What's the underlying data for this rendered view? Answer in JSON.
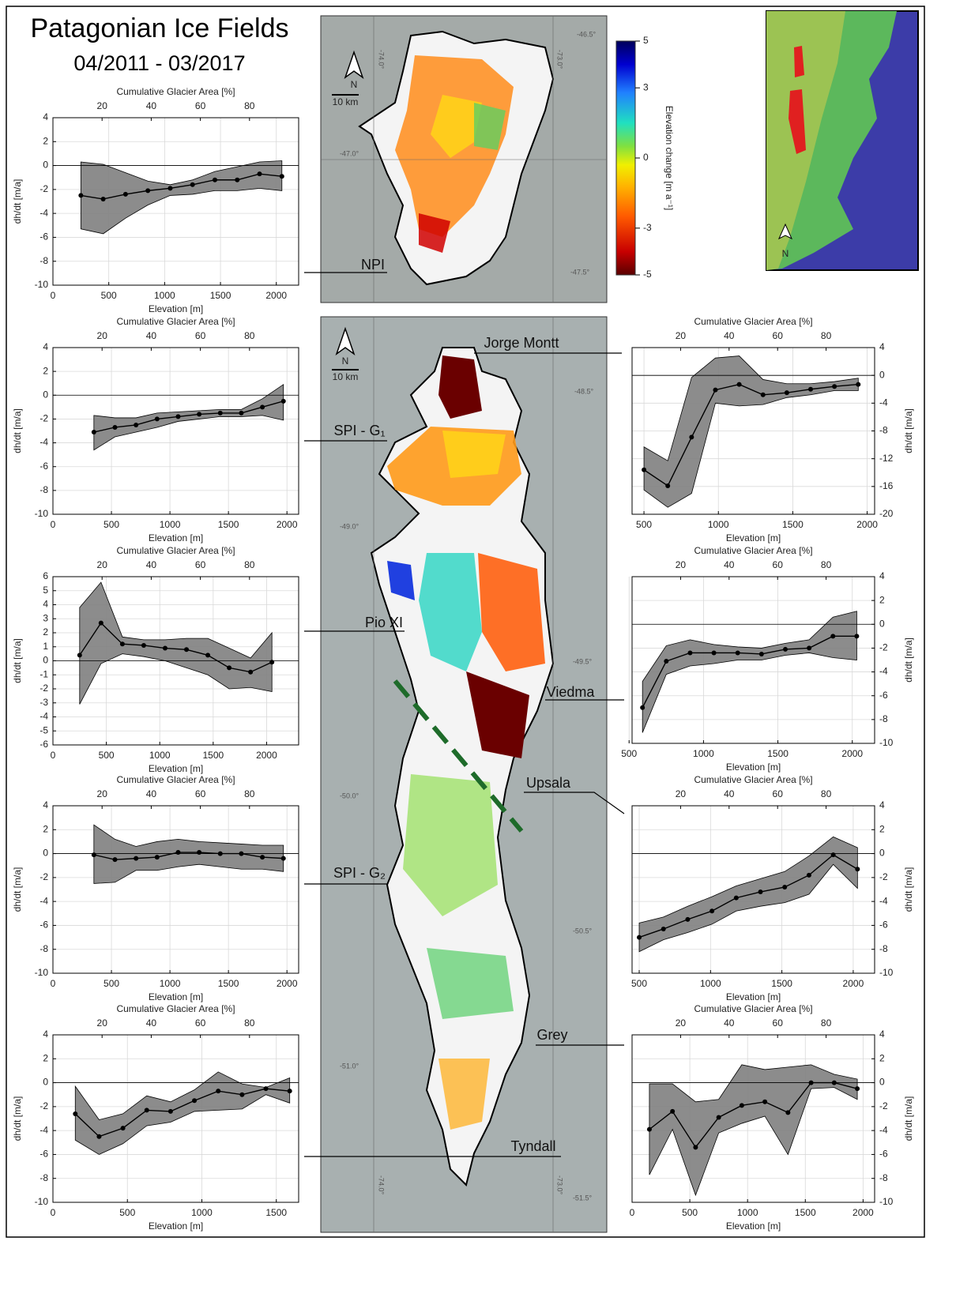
{
  "figure": {
    "title": "Patagonian Ice Fields",
    "subtitle": "04/2011 - 03/2017"
  },
  "colorbar": {
    "label": "Elevation change [m a⁻¹]",
    "lim": [
      -5,
      5
    ],
    "ticks": [
      5,
      3,
      0,
      -3,
      -5
    ]
  },
  "maps": [
    {
      "coordinates": [
        "-74.0°",
        "-73.0°",
        "-46.5°",
        "-47.0°",
        "-47.5°"
      ],
      "scale": "10 km",
      "north": "N"
    },
    {
      "coordinates": [
        "-48.5°",
        "-49.0°",
        "-49.5°",
        "-50.0°",
        "-50.5°",
        "-51.0°",
        "-51.5°",
        "-74.0°",
        "-73.0°"
      ],
      "scale": "10 km",
      "north": "N"
    },
    {
      "north": "N"
    }
  ],
  "chart_data": [
    {
      "type": "line",
      "label": "NPI",
      "x2label": "Cumulative Glacier Area [%]",
      "xlabel": "Elevation [m]",
      "ylabel": "dh/dt [m/a]",
      "yaxis": "left",
      "grid": true,
      "zero_line": true,
      "x": [
        250,
        450,
        650,
        850,
        1050,
        1250,
        1450,
        1650,
        1850,
        2050
      ],
      "series": [
        {
          "color": "#000000",
          "values": [
            -2.5,
            -2.8,
            -2.4,
            -2.1,
            -1.9,
            -1.6,
            -1.2,
            -1.2,
            -0.7,
            -0.9
          ]
        }
      ],
      "band": {
        "color": "#808080",
        "upper": [
          0.3,
          0.1,
          -0.6,
          -1.3,
          -1.6,
          -1.2,
          -0.5,
          -0.1,
          0.3,
          0.4
        ],
        "lower": [
          -5.3,
          -5.7,
          -4.4,
          -3.3,
          -2.5,
          -2.4,
          -2.1,
          -2.1,
          -1.9,
          -2.1
        ]
      },
      "xlim": [
        0,
        2200
      ],
      "xticks": [
        0,
        500,
        1000,
        1500,
        2000
      ],
      "x2lim": [
        0,
        100
      ],
      "x2ticks": [
        20,
        40,
        60,
        80
      ],
      "ylim": [
        -10,
        4
      ],
      "yticks": [
        -10,
        -8,
        -6,
        -4,
        -2,
        0,
        2,
        4
      ]
    },
    {
      "type": "line",
      "label": "SPI - G₁",
      "x2label": "Cumulative Glacier Area [%]",
      "xlabel": "Elevation [m]",
      "ylabel": "dh/dt [m/a]",
      "yaxis": "left",
      "grid": true,
      "zero_line": true,
      "x": [
        350,
        530,
        710,
        890,
        1070,
        1250,
        1430,
        1610,
        1790,
        1970
      ],
      "series": [
        {
          "color": "#000000",
          "values": [
            -3.1,
            -2.7,
            -2.5,
            -2.0,
            -1.8,
            -1.6,
            -1.5,
            -1.5,
            -1.0,
            -0.5
          ]
        }
      ],
      "band": {
        "color": "#808080",
        "upper": [
          -1.7,
          -1.9,
          -1.9,
          -1.5,
          -1.4,
          -1.3,
          -1.2,
          -1.2,
          -0.3,
          0.9
        ],
        "lower": [
          -4.6,
          -3.5,
          -3.1,
          -2.7,
          -2.2,
          -2.0,
          -1.8,
          -1.8,
          -1.7,
          -2.1
        ]
      },
      "xlim": [
        0,
        2100
      ],
      "xticks": [
        0,
        500,
        1000,
        1500,
        2000
      ],
      "x2lim": [
        0,
        100
      ],
      "x2ticks": [
        20,
        40,
        60,
        80
      ],
      "ylim": [
        -10,
        4
      ],
      "yticks": [
        -10,
        -8,
        -6,
        -4,
        -2,
        0,
        2,
        4
      ]
    },
    {
      "type": "line",
      "label": "Pio XI",
      "x2label": "Cumulative Glacier Area [%]",
      "xlabel": "Elevation [m]",
      "ylabel": "dh/dt [m/a]",
      "yaxis": "left",
      "grid": true,
      "zero_line": true,
      "x": [
        250,
        450,
        650,
        850,
        1050,
        1250,
        1450,
        1650,
        1850,
        2050
      ],
      "series": [
        {
          "color": "#000000",
          "values": [
            0.4,
            2.7,
            1.2,
            1.1,
            0.9,
            0.8,
            0.4,
            -0.5,
            -0.8,
            -0.1
          ]
        }
      ],
      "band": {
        "color": "#808080",
        "upper": [
          3.8,
          5.6,
          1.7,
          1.5,
          1.5,
          1.6,
          1.6,
          0.9,
          0.2,
          2.0
        ],
        "lower": [
          -3.1,
          -0.2,
          0.5,
          0.3,
          0.0,
          -0.5,
          -1.0,
          -2.0,
          -1.9,
          -2.2
        ]
      },
      "xlim": [
        0,
        2300
      ],
      "xticks": [
        0,
        500,
        1000,
        1500,
        2000
      ],
      "x2lim": [
        0,
        100
      ],
      "x2ticks": [
        20,
        40,
        60,
        80
      ],
      "ylim": [
        -6,
        6
      ],
      "yticks": [
        -6,
        -5,
        -4,
        -3,
        -2,
        -1,
        0,
        1,
        2,
        3,
        4,
        5,
        6
      ]
    },
    {
      "type": "line",
      "label": "SPI - G₂",
      "x2label": "Cumulative Glacier Area [%]",
      "xlabel": "Elevation [m]",
      "ylabel": "dh/dt [m/a]",
      "yaxis": "left",
      "grid": true,
      "zero_line": true,
      "x": [
        350,
        530,
        710,
        890,
        1070,
        1250,
        1430,
        1610,
        1790,
        1970
      ],
      "series": [
        {
          "color": "#000000",
          "values": [
            -0.1,
            -0.5,
            -0.4,
            -0.3,
            0.1,
            0.1,
            0.0,
            0.0,
            -0.3,
            -0.4
          ]
        }
      ],
      "band": {
        "color": "#808080",
        "upper": [
          2.4,
          1.2,
          0.6,
          1.0,
          1.2,
          1.0,
          0.9,
          0.8,
          0.7,
          0.7
        ],
        "lower": [
          -2.5,
          -2.4,
          -1.4,
          -1.4,
          -1.1,
          -0.9,
          -1.1,
          -1.3,
          -1.3,
          -1.5
        ]
      },
      "xlim": [
        0,
        2100
      ],
      "xticks": [
        0,
        500,
        1000,
        1500,
        2000
      ],
      "x2lim": [
        0,
        100
      ],
      "x2ticks": [
        20,
        40,
        60,
        80
      ],
      "ylim": [
        -10,
        4
      ],
      "yticks": [
        -10,
        -8,
        -6,
        -4,
        -2,
        0,
        2,
        4
      ]
    },
    {
      "type": "line",
      "label": "Tyndall",
      "x2label": "Cumulative Glacier Area [%]",
      "xlabel": "Elevation [m]",
      "ylabel": "dh/dt [m/a]",
      "yaxis": "left",
      "grid": true,
      "zero_line": true,
      "x": [
        150,
        310,
        470,
        630,
        790,
        950,
        1110,
        1270,
        1430,
        1590
      ],
      "series": [
        {
          "color": "#000000",
          "values": [
            -2.6,
            -4.5,
            -3.8,
            -2.3,
            -2.4,
            -1.5,
            -0.7,
            -1.0,
            -0.5,
            -0.7
          ]
        }
      ],
      "band": {
        "color": "#808080",
        "upper": [
          -0.3,
          -3.1,
          -2.6,
          -1.1,
          -1.6,
          -0.6,
          0.9,
          -0.1,
          -0.4,
          0.4
        ],
        "lower": [
          -4.8,
          -6.0,
          -5.1,
          -3.6,
          -3.3,
          -2.4,
          -2.3,
          -2.2,
          -1.0,
          -1.7
        ]
      },
      "xlim": [
        0,
        1650
      ],
      "xticks": [
        0,
        500,
        1000,
        1500
      ],
      "x2lim": [
        0,
        100
      ],
      "x2ticks": [
        20,
        40,
        60,
        80
      ],
      "ylim": [
        -10,
        4
      ],
      "yticks": [
        -10,
        -8,
        -6,
        -4,
        -2,
        0,
        2,
        4
      ]
    },
    {
      "type": "line",
      "label": "Jorge Montt",
      "x2label": "Cumulative Glacier Area [%]",
      "xlabel": "Elevation [m]",
      "ylabel": "dh/dt [m/a]",
      "yaxis": "right",
      "grid": true,
      "zero_line": true,
      "x": [
        500,
        660,
        820,
        980,
        1140,
        1300,
        1460,
        1620,
        1780,
        1940
      ],
      "series": [
        {
          "color": "#000000",
          "values": [
            -13.6,
            -15.9,
            -8.9,
            -2.1,
            -1.3,
            -2.8,
            -2.5,
            -2.0,
            -1.6,
            -1.3
          ]
        }
      ],
      "band": {
        "color": "#808080",
        "upper": [
          -10.3,
          -12.3,
          -0.3,
          2.5,
          2.8,
          -0.6,
          -1.2,
          -1.2,
          -0.9,
          -0.4
        ],
        "lower": [
          -16.5,
          -19.0,
          -17.0,
          -4.0,
          -4.4,
          -4.2,
          -3.2,
          -2.8,
          -2.2,
          -2.2
        ]
      },
      "xlim": [
        420,
        2050
      ],
      "xticks": [
        500,
        1000,
        1500,
        2000
      ],
      "x2lim": [
        0,
        100
      ],
      "x2ticks": [
        20,
        40,
        60,
        80
      ],
      "ylim": [
        -20,
        4
      ],
      "yticks": [
        -20,
        -16,
        -12,
        -8,
        -4,
        0,
        4
      ]
    },
    {
      "type": "line",
      "label": "Viedma",
      "x2label": "Cumulative Glacier Area [%]",
      "xlabel": "Elevation [m]",
      "ylabel": "dh/dt [m/a]",
      "yaxis": "right",
      "grid": true,
      "zero_line": true,
      "x": [
        590,
        750,
        910,
        1070,
        1230,
        1390,
        1550,
        1710,
        1870,
        2030
      ],
      "series": [
        {
          "color": "#000000",
          "values": [
            -7.0,
            -3.1,
            -2.4,
            -2.4,
            -2.4,
            -2.5,
            -2.1,
            -2.0,
            -1.0,
            -1.0
          ]
        }
      ],
      "band": {
        "color": "#808080",
        "upper": [
          -4.8,
          -1.8,
          -1.3,
          -1.7,
          -1.9,
          -2.0,
          -1.6,
          -1.3,
          0.6,
          1.1
        ],
        "lower": [
          -9.1,
          -4.2,
          -3.5,
          -3.3,
          -3.0,
          -3.0,
          -2.6,
          -2.4,
          -2.8,
          -3.0
        ]
      },
      "xlim": [
        520,
        2150
      ],
      "xticks": [
        500,
        1000,
        1500,
        2000
      ],
      "x2lim": [
        0,
        100
      ],
      "x2ticks": [
        20,
        40,
        60,
        80
      ],
      "ylim": [
        -10,
        4
      ],
      "yticks": [
        -10,
        -8,
        -6,
        -4,
        -2,
        0,
        2,
        4
      ]
    },
    {
      "type": "line",
      "label": "Upsala",
      "x2label": "Cumulative Glacier Area [%]",
      "xlabel": "Elevation [m]",
      "ylabel": "dh/dt [m/a]",
      "yaxis": "right",
      "grid": true,
      "zero_line": true,
      "x": [
        500,
        670,
        840,
        1010,
        1180,
        1350,
        1520,
        1690,
        1860,
        2030
      ],
      "series": [
        {
          "color": "#000000",
          "values": [
            -7.0,
            -6.3,
            -5.5,
            -4.8,
            -3.7,
            -3.2,
            -2.8,
            -1.8,
            -0.1,
            -1.3
          ]
        }
      ],
      "band": {
        "color": "#808080",
        "upper": [
          -5.8,
          -5.3,
          -4.4,
          -3.6,
          -2.7,
          -2.1,
          -1.5,
          -0.2,
          1.4,
          0.5
        ],
        "lower": [
          -8.2,
          -7.2,
          -6.6,
          -5.9,
          -4.8,
          -4.4,
          -4.1,
          -3.4,
          -0.9,
          -2.9
        ]
      },
      "xlim": [
        450,
        2150
      ],
      "xticks": [
        500,
        1000,
        1500,
        2000
      ],
      "x2lim": [
        0,
        100
      ],
      "x2ticks": [
        20,
        40,
        60,
        80
      ],
      "ylim": [
        -10,
        4
      ],
      "yticks": [
        -10,
        -8,
        -6,
        -4,
        -2,
        0,
        2,
        4
      ]
    },
    {
      "type": "line",
      "label": "Grey",
      "x2label": "Cumulative Glacier Area [%]",
      "xlabel": "Elevation [m]",
      "ylabel": "dh/dt [m/a]",
      "yaxis": "right",
      "grid": true,
      "zero_line": true,
      "x": [
        150,
        350,
        550,
        750,
        950,
        1150,
        1350,
        1550,
        1750,
        1950
      ],
      "series": [
        {
          "color": "#000000",
          "values": [
            -3.9,
            -2.4,
            -5.4,
            -2.9,
            -1.9,
            -1.6,
            -2.5,
            0.0,
            0.0,
            -0.5
          ]
        }
      ],
      "band": {
        "color": "#808080",
        "upper": [
          -0.1,
          -0.1,
          -1.6,
          -1.4,
          1.5,
          1.1,
          1.3,
          1.5,
          0.7,
          0.3
        ],
        "lower": [
          -7.7,
          -3.9,
          -9.4,
          -4.2,
          -3.4,
          -2.8,
          -6.0,
          -0.5,
          -0.4,
          -1.4
        ]
      },
      "xlim": [
        0,
        2100
      ],
      "xticks": [
        0,
        500,
        1000,
        1500,
        2000
      ],
      "x2lim": [
        0,
        100
      ],
      "x2ticks": [
        20,
        40,
        60,
        80
      ],
      "ylim": [
        -10,
        4
      ],
      "yticks": [
        -10,
        -8,
        -6,
        -4,
        -2,
        0,
        2,
        4
      ]
    }
  ]
}
